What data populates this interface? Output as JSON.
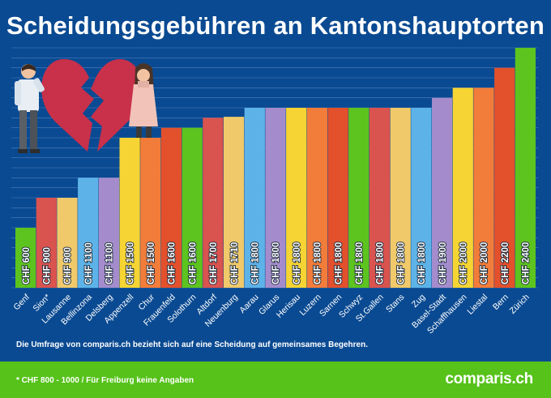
{
  "title": "Scheidungsgebühren an Kantonshauptorten",
  "note": "Die Umfrage von comparis.ch bezieht sich auf eine Scheidung auf gemeinsames Begehren.",
  "footnote": "* CHF 800 - 1000 / Für Freiburg keine Angaben",
  "logo": "comparis.ch",
  "colors": {
    "background": "#0a4a92",
    "footer": "#56c21a",
    "grid": "#4f7fbb"
  },
  "illustration": "heartbreak-couple-illustration",
  "chart_data": {
    "type": "bar",
    "title": "Scheidungsgebühren an Kantonshauptorten",
    "xlabel": "",
    "ylabel": "",
    "ylim": [
      0,
      2400
    ],
    "grid": true,
    "categories": [
      "Genf",
      "Sion*",
      "Lausanne",
      "Bellinzona",
      "Delsberg",
      "Appenzell",
      "Chur",
      "Frauenfeld",
      "Solothurn",
      "Altdorf",
      "Neuenburg",
      "Aarau",
      "Glarus",
      "Herisau",
      "Luzern",
      "Sarnen",
      "Schwyz",
      "St.Gallen",
      "Stans",
      "Zug",
      "Basel-Stadt",
      "Schaffhausen",
      "Liestal",
      "Bern",
      "Zürich"
    ],
    "values": [
      600,
      900,
      900,
      1100,
      1100,
      1500,
      1500,
      1600,
      1600,
      1700,
      1710,
      1800,
      1800,
      1800,
      1800,
      1800,
      1800,
      1800,
      1800,
      1800,
      1900,
      2000,
      2000,
      2200,
      2400
    ],
    "labels": [
      "CHF 600",
      "CHF 900",
      "CHF 900",
      "CHF 1100",
      "CHF 1100",
      "CHF 1500",
      "CHF 1500",
      "CHF 1600",
      "CHF 1600",
      "CHF 1700",
      "CHF 1710",
      "CHF 1800",
      "CHF 1800",
      "CHF 1800",
      "CHF 1800",
      "CHF 1800",
      "CHF 1800",
      "CHF 1800",
      "CHF 1800",
      "CHF 1800",
      "CHF 1900",
      "CHF 2000",
      "CHF 2000",
      "CHF 2200",
      "CHF 2400"
    ],
    "colors": [
      "#5dc31f",
      "#d9534f",
      "#f0c96a",
      "#5db3e8",
      "#a48ccc",
      "#f5d433",
      "#f27c3a",
      "#e3502c",
      "#5dc31f",
      "#d9534f",
      "#f0c96a",
      "#5db3e8",
      "#a48ccc",
      "#f5d433",
      "#f27c3a",
      "#e3502c",
      "#5dc31f",
      "#d9534f",
      "#f0c96a",
      "#5db3e8",
      "#a48ccc",
      "#f5d433",
      "#f27c3a",
      "#e3502c",
      "#5dc31f"
    ]
  }
}
